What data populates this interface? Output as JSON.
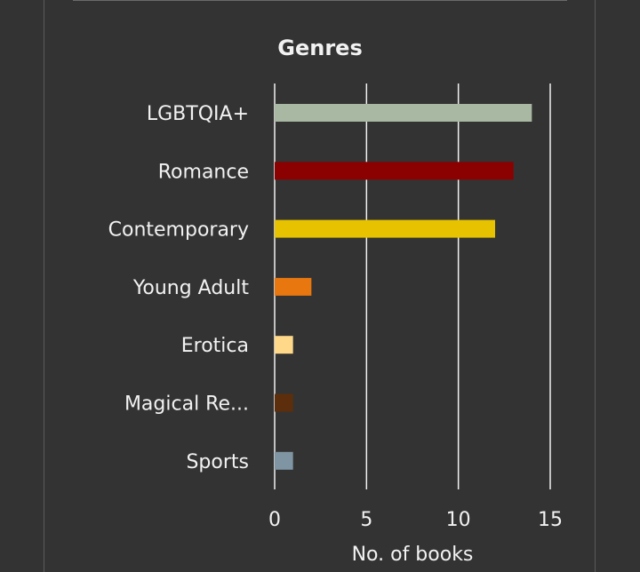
{
  "chart_data": {
    "type": "bar",
    "orientation": "horizontal",
    "title": "Genres",
    "xlabel": "No. of books",
    "ylabel": "",
    "categories": [
      "LGBTQIA+",
      "Romance",
      "Contemporary",
      "Young Adult",
      "Erotica",
      "Magical Re...",
      "Sports"
    ],
    "values": [
      14,
      13,
      12,
      2,
      1,
      1,
      1
    ],
    "colors": [
      "#a9b8a3",
      "#8b0000",
      "#e6c200",
      "#e8770f",
      "#ffd88a",
      "#5c2e0b",
      "#7f95a4"
    ],
    "xlim": [
      0,
      15
    ],
    "xticks": [
      0,
      5,
      10,
      15
    ],
    "grid": true,
    "legend": "none"
  }
}
